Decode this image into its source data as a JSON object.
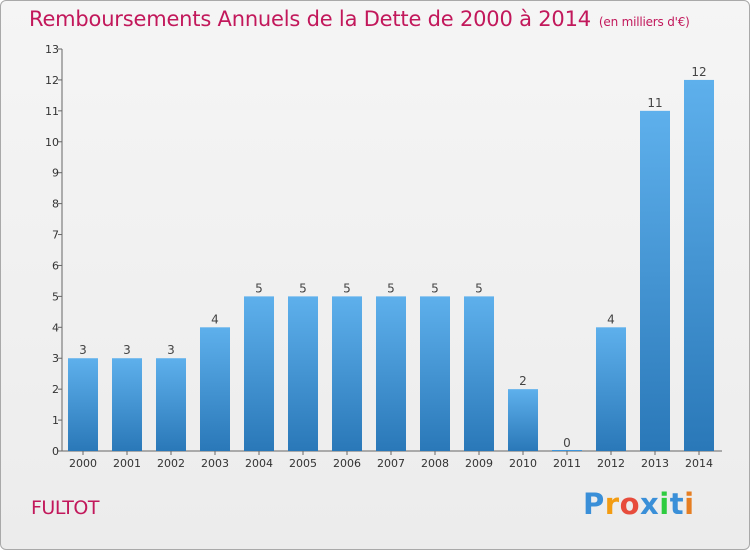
{
  "header": {
    "title": "Remboursements Annuels de la Dette de 2000 à 2014",
    "subtitle": "(en milliers d'€)"
  },
  "commune": "FULTOT",
  "logo": {
    "letters": [
      "P",
      "r",
      "o",
      "x",
      "i",
      "t",
      "i"
    ],
    "colors": [
      "#3a8fd8",
      "#f39c12",
      "#e74c3c",
      "#3a8fd8",
      "#2ecc40",
      "#3a8fd8",
      "#e67e22"
    ]
  },
  "chart_data": {
    "type": "bar",
    "title": "Remboursements Annuels de la Dette de 2000 à 2014",
    "subtitle": "(en milliers d'€)",
    "xlabel": "",
    "ylabel": "",
    "categories": [
      "2000",
      "2001",
      "2002",
      "2003",
      "2004",
      "2005",
      "2006",
      "2007",
      "2008",
      "2009",
      "2010",
      "2011",
      "2012",
      "2013",
      "2014"
    ],
    "values": [
      3,
      3,
      3,
      4,
      5,
      5,
      5,
      5,
      5,
      5,
      2,
      0,
      4,
      11,
      12
    ],
    "ylim": [
      0,
      13
    ],
    "yticks": [
      0,
      1,
      2,
      3,
      4,
      5,
      6,
      7,
      8,
      9,
      10,
      11,
      12,
      13
    ],
    "grid": false,
    "legend": "none",
    "bar_color": "#3f97dd"
  }
}
